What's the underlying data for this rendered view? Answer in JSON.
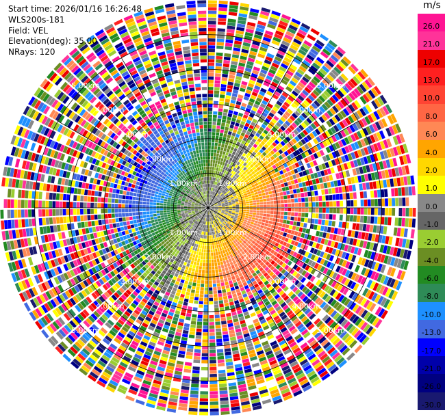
{
  "info": {
    "start_time": "Start time: 2026/01/16 16:26:48",
    "instrument": "WLS200s-181",
    "field": "Field: VEL",
    "elevation": "Elevation(deg): 35.00",
    "nrays": "NRays: 120"
  },
  "colorbar": {
    "unit": "m/s",
    "ticks": [
      "26.0",
      "21.0",
      "17.0",
      "13.0",
      "10.0",
      "8.0",
      "6.0",
      "4.0",
      "2.0",
      "1.0",
      "0.0",
      "-1.0",
      "-2.0",
      "-4.0",
      "-6.0",
      "-8.0",
      "-10.0",
      "-13.0",
      "-17.0",
      "-21.0",
      "-26.0",
      "-30.0"
    ],
    "colors": [
      "#ff1493",
      "#ff3399",
      "#ee0000",
      "#ff2020",
      "#ff4433",
      "#ff6644",
      "#ff8855",
      "#ffa500",
      "#ffd700",
      "#ffff00",
      "#888888",
      "#666666",
      "#9acd32",
      "#6b8e23",
      "#228b22",
      "#2e8b57",
      "#1e90ff",
      "#4169e1",
      "#0000ff",
      "#0000aa",
      "#000080",
      "#191970"
    ]
  },
  "chart_data": {
    "type": "heatmap",
    "subtype": "polar PPI scan",
    "field": "VEL",
    "units": "m/s",
    "nrays": 120,
    "elevation_deg": 35.0,
    "range_max_km": 6.0,
    "range_rings_km": [
      1.0,
      2.0,
      3.0,
      4.0,
      5.0
    ],
    "ring_labels": [
      "1.00km",
      "2.00km",
      "3.00km",
      "4.00km",
      "5.00km"
    ],
    "grid": true,
    "colorbar_position": "right",
    "clean_range_km": 2.2,
    "noisy_beyond_range_km": 2.8,
    "wind_pattern": {
      "toward_sector_azimuth_deg": [
        240,
        360
      ],
      "away_sector_azimuth_deg": [
        60,
        180
      ],
      "toward_peak_velocity_ms": -13,
      "away_peak_velocity_ms": 10
    }
  }
}
